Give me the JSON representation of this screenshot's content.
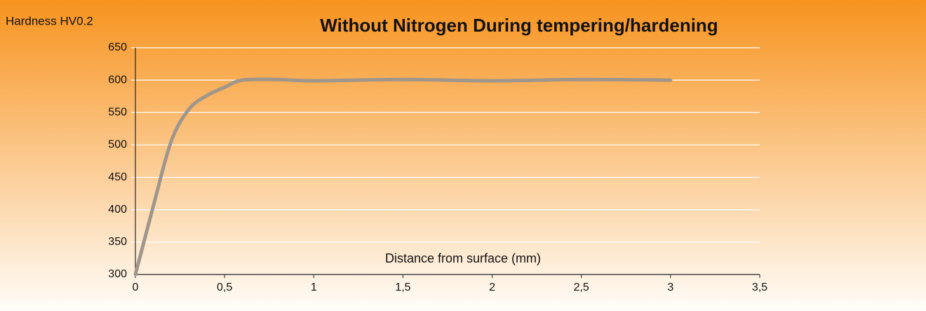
{
  "chart_data": {
    "type": "line",
    "title": "Without Nitrogen During tempering/hardening",
    "ylabel": "Hardness HV0.2",
    "xlabel": "Distance from surface (mm)",
    "x": [
      0,
      0.1,
      0.2,
      0.3,
      0.4,
      0.5,
      0.6,
      0.8,
      1,
      1.5,
      2,
      2.5,
      3
    ],
    "values": [
      300,
      405,
      505,
      555,
      576,
      589,
      600,
      601,
      599,
      601,
      599,
      601,
      600
    ],
    "color": "#a0968c",
    "xlim": [
      0,
      3.5
    ],
    "xticks": [
      0,
      {
        "value": 0.5,
        "label": "0,5"
      },
      1,
      {
        "value": 1.5,
        "label": "1,5"
      },
      2,
      {
        "value": 2.5,
        "label": "2,5"
      },
      3,
      {
        "value": 3.5,
        "label": "3,5"
      }
    ],
    "ylim": [
      300,
      650
    ],
    "yticks": [
      300,
      350,
      400,
      450,
      500,
      550,
      600,
      650
    ],
    "grid": true
  }
}
